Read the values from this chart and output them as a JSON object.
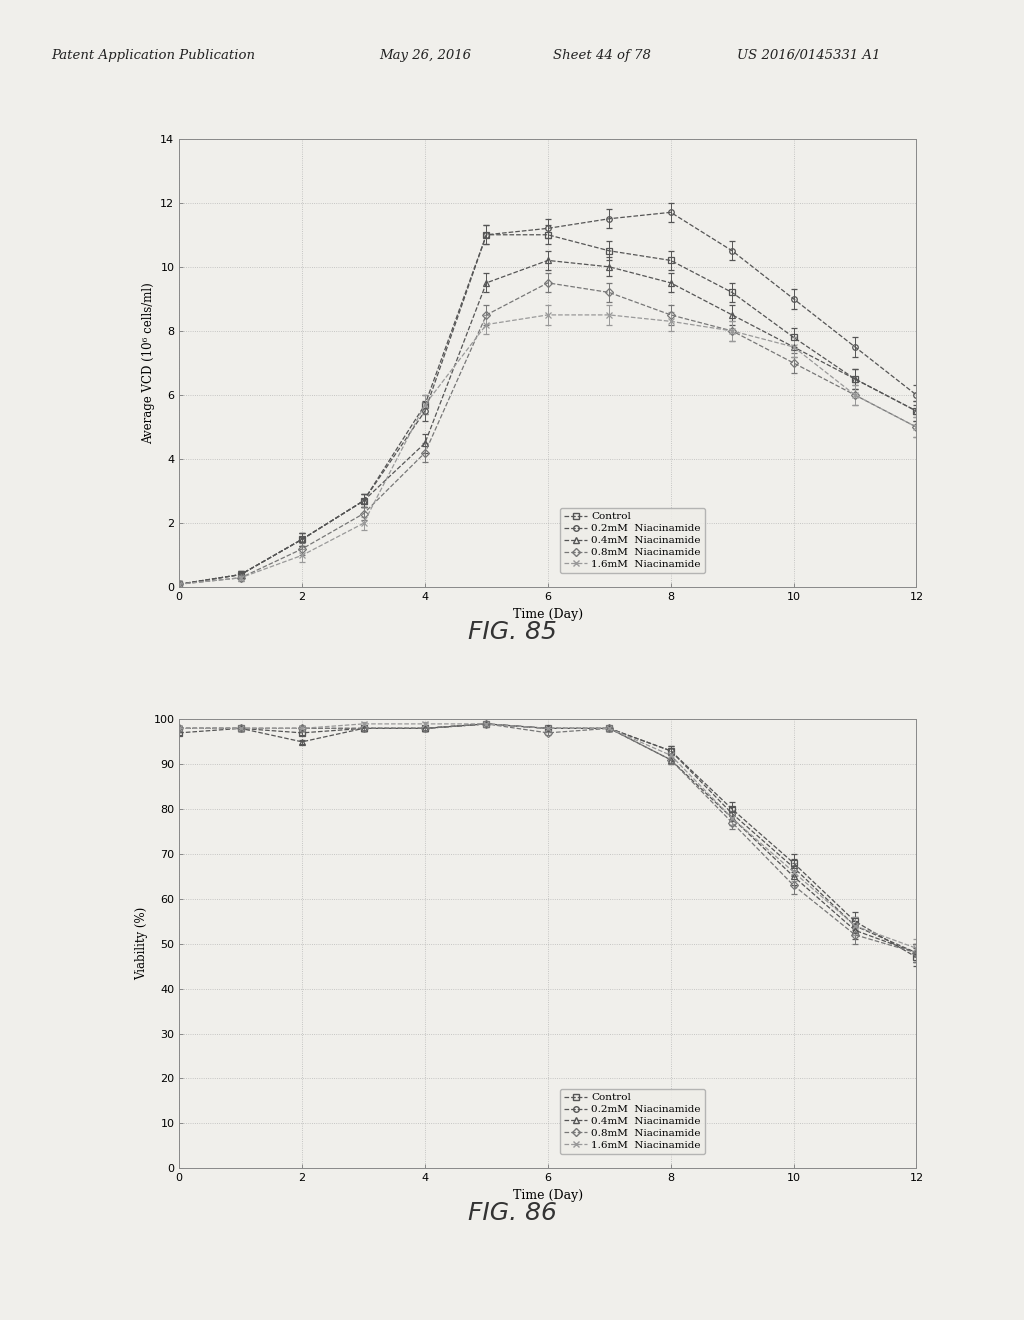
{
  "fig85": {
    "title": "FIG. 85",
    "xlabel": "Time (Day)",
    "ylabel": "Average VCD (10⁶ cells/ml)",
    "xlim": [
      0,
      12
    ],
    "ylim": [
      0,
      14
    ],
    "xticks": [
      0,
      2,
      4,
      6,
      8,
      10,
      12
    ],
    "yticks": [
      0.0,
      2.0,
      4.0,
      6.0,
      8.0,
      10.0,
      12.0,
      14.0
    ],
    "series": [
      {
        "label": "Control",
        "marker": "s",
        "linestyle": "--",
        "color": "#555555",
        "x": [
          0,
          1,
          2,
          3,
          4,
          5,
          6,
          7,
          8,
          9,
          10,
          11,
          12
        ],
        "y": [
          0.1,
          0.4,
          1.5,
          2.7,
          5.7,
          11.0,
          11.0,
          10.5,
          10.2,
          9.2,
          7.8,
          6.5,
          5.5
        ],
        "yerr": [
          0.1,
          0.1,
          0.2,
          0.2,
          0.3,
          0.3,
          0.3,
          0.3,
          0.3,
          0.3,
          0.3,
          0.3,
          0.3
        ]
      },
      {
        "label": "0.2mM  Niacinamide",
        "marker": "o",
        "linestyle": "--",
        "color": "#555555",
        "x": [
          0,
          1,
          2,
          3,
          4,
          5,
          6,
          7,
          8,
          9,
          10,
          11,
          12
        ],
        "y": [
          0.1,
          0.4,
          1.5,
          2.7,
          5.5,
          11.0,
          11.2,
          11.5,
          11.7,
          10.5,
          9.0,
          7.5,
          6.0
        ],
        "yerr": [
          0.1,
          0.1,
          0.2,
          0.2,
          0.3,
          0.3,
          0.3,
          0.3,
          0.3,
          0.3,
          0.3,
          0.3,
          0.3
        ]
      },
      {
        "label": "0.4mM  Niacinamide",
        "marker": "^",
        "linestyle": "--",
        "color": "#555555",
        "x": [
          0,
          1,
          2,
          3,
          4,
          5,
          6,
          7,
          8,
          9,
          10,
          11,
          12
        ],
        "y": [
          0.1,
          0.4,
          1.5,
          2.7,
          4.5,
          9.5,
          10.2,
          10.0,
          9.5,
          8.5,
          7.5,
          6.5,
          5.5
        ],
        "yerr": [
          0.1,
          0.1,
          0.2,
          0.2,
          0.3,
          0.3,
          0.3,
          0.3,
          0.3,
          0.3,
          0.3,
          0.3,
          0.3
        ]
      },
      {
        "label": "0.8mM  Niacinamide",
        "marker": "D",
        "linestyle": "--",
        "color": "#777777",
        "x": [
          0,
          1,
          2,
          3,
          4,
          5,
          6,
          7,
          8,
          9,
          10,
          11,
          12
        ],
        "y": [
          0.1,
          0.3,
          1.2,
          2.3,
          4.2,
          8.5,
          9.5,
          9.2,
          8.5,
          8.0,
          7.0,
          6.0,
          5.0
        ],
        "yerr": [
          0.1,
          0.1,
          0.2,
          0.2,
          0.3,
          0.3,
          0.3,
          0.3,
          0.3,
          0.3,
          0.3,
          0.3,
          0.3
        ]
      },
      {
        "label": "1.6mM  Niacinamide",
        "marker": "x",
        "linestyle": "--",
        "color": "#999999",
        "x": [
          0,
          1,
          2,
          3,
          4,
          5,
          6,
          7,
          8,
          9,
          10,
          11,
          12
        ],
        "y": [
          0.1,
          0.3,
          1.0,
          2.0,
          5.7,
          8.2,
          8.5,
          8.5,
          8.3,
          8.0,
          7.5,
          6.0,
          5.0
        ],
        "yerr": [
          0.1,
          0.1,
          0.2,
          0.2,
          0.3,
          0.3,
          0.3,
          0.3,
          0.3,
          0.3,
          0.3,
          0.3,
          0.3
        ]
      }
    ]
  },
  "fig86": {
    "title": "FIG. 86",
    "xlabel": "Time (Day)",
    "ylabel": "Viability (%)",
    "xlim": [
      0,
      12
    ],
    "ylim": [
      0,
      100
    ],
    "xticks": [
      0,
      2,
      4,
      6,
      8,
      10,
      12
    ],
    "yticks": [
      0,
      10,
      20,
      30,
      40,
      50,
      60,
      70,
      80,
      90,
      100
    ],
    "series": [
      {
        "label": "Control",
        "marker": "s",
        "linestyle": "--",
        "color": "#555555",
        "x": [
          0,
          1,
          2,
          3,
          4,
          5,
          6,
          7,
          8,
          9,
          10,
          11,
          12
        ],
        "y": [
          97,
          98,
          97,
          98,
          98,
          99,
          98,
          98,
          93,
          80,
          68,
          55,
          47
        ],
        "yerr": [
          0.5,
          0.5,
          0.5,
          0.5,
          0.5,
          0.5,
          0.5,
          0.5,
          1.0,
          1.5,
          2.0,
          2.0,
          2.0
        ]
      },
      {
        "label": "0.2mM  Niacinamide",
        "marker": "o",
        "linestyle": "--",
        "color": "#555555",
        "x": [
          0,
          1,
          2,
          3,
          4,
          5,
          6,
          7,
          8,
          9,
          10,
          11,
          12
        ],
        "y": [
          98,
          98,
          98,
          98,
          98,
          99,
          98,
          98,
          93,
          79,
          67,
          54,
          48
        ],
        "yerr": [
          0.5,
          0.5,
          0.5,
          0.5,
          0.5,
          0.5,
          0.5,
          0.5,
          1.0,
          1.5,
          2.0,
          2.0,
          2.0
        ]
      },
      {
        "label": "0.4mM  Niacinamide",
        "marker": "^",
        "linestyle": "--",
        "color": "#555555",
        "x": [
          0,
          1,
          2,
          3,
          4,
          5,
          6,
          7,
          8,
          9,
          10,
          11,
          12
        ],
        "y": [
          98,
          98,
          95,
          98,
          98,
          99,
          98,
          98,
          91,
          78,
          65,
          53,
          48
        ],
        "yerr": [
          0.5,
          0.5,
          0.5,
          0.5,
          0.5,
          0.5,
          0.5,
          0.5,
          1.0,
          1.5,
          2.0,
          2.0,
          2.0
        ]
      },
      {
        "label": "0.8mM  Niacinamide",
        "marker": "D",
        "linestyle": "--",
        "color": "#777777",
        "x": [
          0,
          1,
          2,
          3,
          4,
          5,
          6,
          7,
          8,
          9,
          10,
          11,
          12
        ],
        "y": [
          98,
          98,
          98,
          98,
          98,
          99,
          97,
          98,
          91,
          77,
          63,
          52,
          48
        ],
        "yerr": [
          0.5,
          0.5,
          0.5,
          0.5,
          0.5,
          0.5,
          0.5,
          0.5,
          1.0,
          1.5,
          2.0,
          2.0,
          2.0
        ]
      },
      {
        "label": "1.6mM  Niacinamide",
        "marker": "x",
        "linestyle": "--",
        "color": "#999999",
        "x": [
          0,
          1,
          2,
          3,
          4,
          5,
          6,
          7,
          8,
          9,
          10,
          11,
          12
        ],
        "y": [
          98,
          98,
          98,
          99,
          99,
          99,
          98,
          98,
          92,
          78,
          66,
          54,
          49
        ],
        "yerr": [
          0.5,
          0.5,
          0.5,
          0.5,
          0.5,
          0.5,
          0.5,
          0.5,
          1.0,
          1.5,
          2.0,
          2.0,
          2.0
        ]
      }
    ]
  },
  "header_line1": "Patent Application Publication",
  "header_line2": "May 26, 2016",
  "header_line3": "Sheet 44 of 78",
  "header_line4": "US 2016/0145331 A1",
  "bg_color": "#f0efeb",
  "plot_bg_color": "#f0efeb",
  "text_color": "#222222"
}
